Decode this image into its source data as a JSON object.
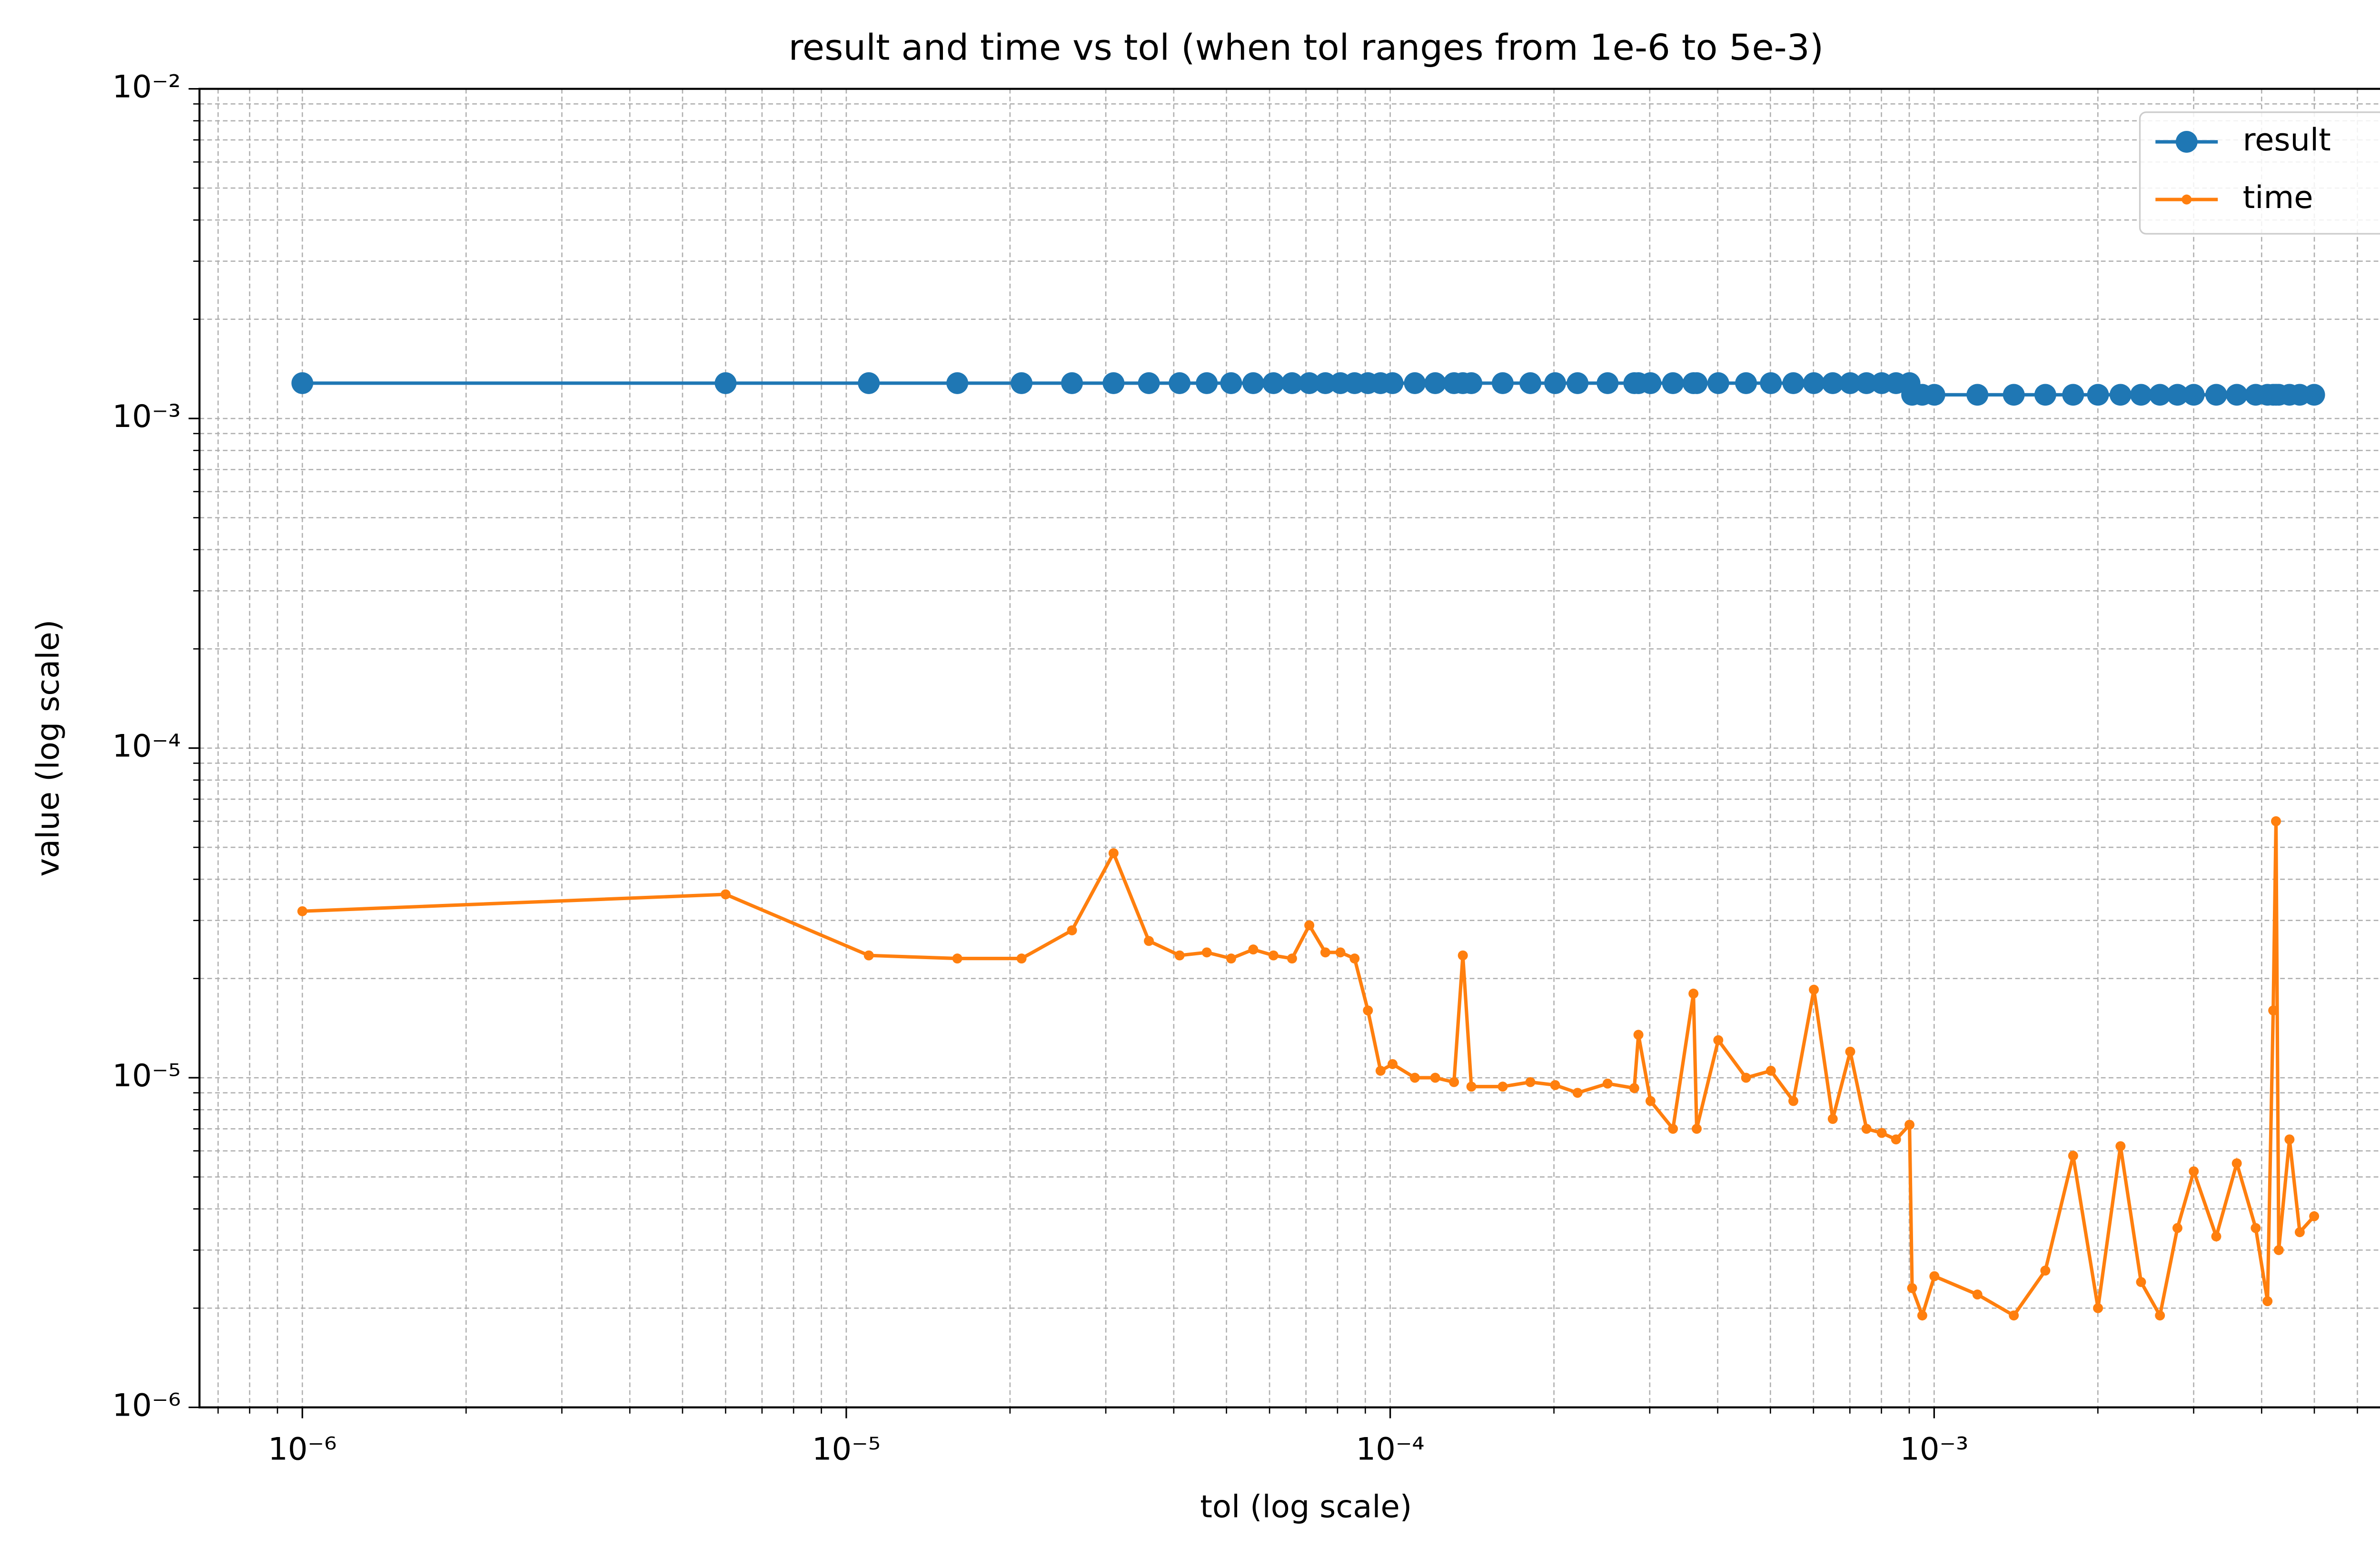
{
  "chart_data": {
    "type": "line",
    "title": "result and time vs tol (when tol ranges from 1e-6 to 5e-3)",
    "x_label": "tol (log scale)",
    "y_label": "value (log scale)",
    "xscale": "log",
    "yscale": "log",
    "grid": true,
    "legend": "upper right",
    "x": [
      1e-06,
      6e-06,
      1.1e-05,
      1.6e-05,
      2.1e-05,
      2.6e-05,
      3.1e-05,
      3.6e-05,
      4.1e-05,
      4.6e-05,
      5.1e-05,
      5.6e-05,
      6.1e-05,
      6.6e-05,
      7.1e-05,
      7.6e-05,
      8.1e-05,
      8.6e-05,
      9.1e-05,
      9.6e-05,
      0.000101,
      0.000111,
      0.000121,
      0.000131,
      0.000136,
      0.000141,
      0.000161,
      0.000181,
      0.000201,
      0.000221,
      0.000251,
      0.000281,
      0.000286,
      0.000301,
      0.000331,
      0.000361,
      0.000366,
      0.000401,
      0.000451,
      0.000501,
      0.000551,
      0.000601,
      0.000651,
      0.000701,
      0.000751,
      0.000801,
      0.000851,
      0.000901,
      0.000911,
      0.000951,
      0.001001,
      0.001201,
      0.001401,
      0.001601,
      0.001801,
      0.002001,
      0.002201,
      0.002401,
      0.002601,
      0.002801,
      0.003001,
      0.003301,
      0.003601,
      0.003901,
      0.004101,
      0.004201,
      0.004251,
      0.004301,
      0.004501,
      0.004701,
      0.004996
    ],
    "series": [
      {
        "name": "result",
        "color": "#1f77b4",
        "values": [
          0.00128,
          0.00128,
          0.00128,
          0.00128,
          0.00128,
          0.00128,
          0.00128,
          0.00128,
          0.00128,
          0.00128,
          0.00128,
          0.00128,
          0.00128,
          0.00128,
          0.00128,
          0.00128,
          0.00128,
          0.00128,
          0.00128,
          0.00128,
          0.00128,
          0.00128,
          0.00128,
          0.00128,
          0.00128,
          0.00128,
          0.00128,
          0.00128,
          0.00128,
          0.00128,
          0.00128,
          0.00128,
          0.00128,
          0.00128,
          0.00128,
          0.00128,
          0.00128,
          0.00128,
          0.00128,
          0.00128,
          0.00128,
          0.00128,
          0.00128,
          0.00128,
          0.00128,
          0.00128,
          0.00128,
          0.00128,
          0.00118,
          0.00118,
          0.00118,
          0.00118,
          0.00118,
          0.00118,
          0.00118,
          0.00118,
          0.00118,
          0.00118,
          0.00118,
          0.00118,
          0.00118,
          0.00118,
          0.00118,
          0.00118,
          0.00118,
          0.00118,
          0.00118,
          0.00118,
          0.00118,
          0.00118,
          0.00118
        ]
      },
      {
        "name": "time",
        "color": "#ff7f0e",
        "values": [
          3.2e-05,
          3.6e-05,
          2.35e-05,
          2.3e-05,
          2.3e-05,
          2.8e-05,
          4.8e-05,
          2.6e-05,
          2.35e-05,
          2.4e-05,
          2.3e-05,
          2.45e-05,
          2.35e-05,
          2.3e-05,
          2.9e-05,
          2.4e-05,
          2.4e-05,
          2.3e-05,
          1.6e-05,
          1.05e-05,
          1.1e-05,
          1e-05,
          1e-05,
          9.7e-06,
          2.35e-05,
          9.4e-06,
          9.4e-06,
          9.7e-06,
          9.5e-06,
          9e-06,
          9.6e-06,
          9.3e-06,
          1.35e-05,
          8.5e-06,
          7e-06,
          1.8e-05,
          7e-06,
          1.3e-05,
          1e-05,
          1.05e-05,
          8.5e-06,
          1.85e-05,
          7.5e-06,
          1.2e-05,
          7e-06,
          6.8e-06,
          6.5e-06,
          7.2e-06,
          2.3e-06,
          1.9e-06,
          2.5e-06,
          2.2e-06,
          1.9e-06,
          2.6e-06,
          5.8e-06,
          2e-06,
          6.2e-06,
          2.4e-06,
          1.9e-06,
          3.5e-06,
          5.2e-06,
          3.3e-06,
          5.5e-06,
          3.5e-06,
          2.1e-06,
          1.6e-05,
          6e-05,
          3e-06,
          6.5e-06,
          3.4e-06,
          3.8e-06
        ]
      }
    ],
    "xlim": [
      6.47e-07,
      0.00763
    ],
    "ylim": [
      1e-06,
      0.01
    ],
    "xticks": [
      {
        "value": 1e-06,
        "label": "10⁻⁶"
      },
      {
        "value": 1e-05,
        "label": "10⁻⁵"
      },
      {
        "value": 0.0001,
        "label": "10⁻⁴"
      },
      {
        "value": 0.001,
        "label": "10⁻³"
      }
    ],
    "yticks": [
      {
        "value": 1e-06,
        "label": "10⁻⁶"
      },
      {
        "value": 1e-05,
        "label": "10⁻⁵"
      },
      {
        "value": 0.0001,
        "label": "10⁻⁴"
      },
      {
        "value": 0.001,
        "label": "10⁻³"
      },
      {
        "value": 0.01,
        "label": "10⁻²"
      }
    ]
  }
}
